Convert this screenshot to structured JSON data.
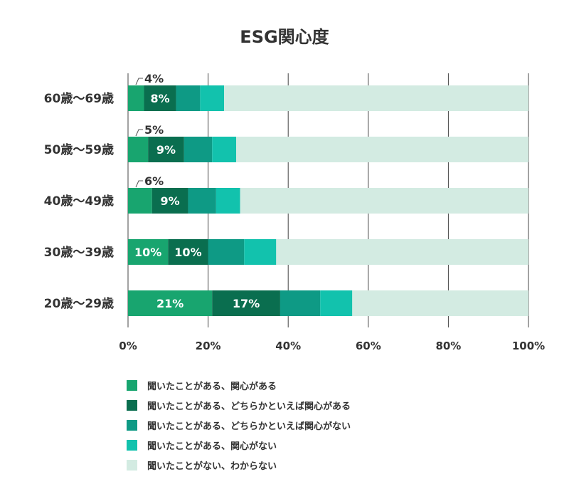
{
  "chart_data": {
    "type": "bar",
    "orientation": "horizontal",
    "stacked": true,
    "title": "ESG関心度",
    "xlabel": "",
    "ylabel": "",
    "xlim": [
      0,
      100
    ],
    "grid": true,
    "categories": [
      "60歳～69歳",
      "50歳～59歳",
      "40歳～49歳",
      "30歳～39歳",
      "20歳～29歳"
    ],
    "x_ticks": [
      0,
      20,
      40,
      60,
      80,
      100
    ],
    "x_tick_labels": [
      "0%",
      "20%",
      "40%",
      "60%",
      "80%",
      "100%"
    ],
    "series": [
      {
        "name": "聞いたことがある、関心がある",
        "color": "#18a56f",
        "values": [
          4,
          5,
          6,
          10,
          21
        ],
        "labels": [
          "4%",
          "5%",
          "6%",
          "10%",
          "21%"
        ],
        "label_outside": [
          true,
          true,
          true,
          false,
          false
        ]
      },
      {
        "name": "聞いたことがある、どちらかといえば関心がある",
        "color": "#0a6e4f",
        "values": [
          8,
          9,
          9,
          10,
          17
        ],
        "labels": [
          "8%",
          "9%",
          "9%",
          "10%",
          "17%"
        ],
        "label_outside": [
          false,
          false,
          false,
          false,
          false
        ]
      },
      {
        "name": "聞いたことがある、どちらかといえば関心がない",
        "color": "#0e9a85",
        "values": [
          6,
          7,
          7,
          9,
          10
        ],
        "labels": null
      },
      {
        "name": "聞いたことがある、関心がない",
        "color": "#12c2ad",
        "values": [
          6,
          6,
          6,
          8,
          8
        ],
        "labels": null
      },
      {
        "name": "聞いたことがない、わからない",
        "color": "#d3ebe2",
        "values": [
          76,
          73,
          72,
          63,
          44
        ],
        "labels": null
      }
    ]
  }
}
